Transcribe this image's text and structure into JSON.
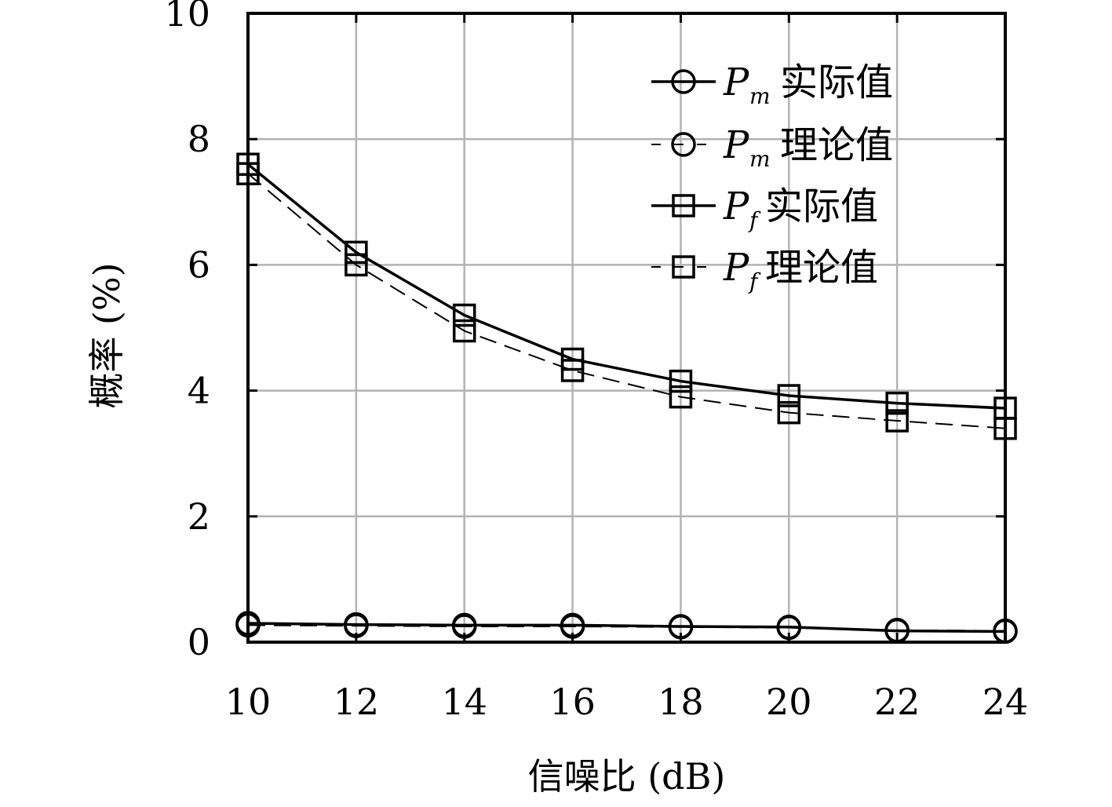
{
  "chart_data": {
    "type": "line",
    "xlabel": "信噪比 (dB)",
    "ylabel": "概率 (%)",
    "xlim": [
      10,
      24
    ],
    "ylim": [
      0,
      10
    ],
    "xticks": [
      "10",
      "12",
      "14",
      "16",
      "18",
      "20",
      "22",
      "24"
    ],
    "yticks": [
      "0",
      "2",
      "4",
      "6",
      "8",
      "10"
    ],
    "grid": true,
    "legend_position": "top-right",
    "x": [
      10,
      12,
      14,
      16,
      18,
      20,
      22,
      24
    ],
    "series": [
      {
        "name": "实际值",
        "symbol": "P",
        "subscript": "m",
        "marker": "circle",
        "dash": "solid",
        "values": [
          0.3,
          0.28,
          0.27,
          0.27,
          0.25,
          0.24,
          0.18,
          0.17
        ]
      },
      {
        "name": "理论值",
        "symbol": "P",
        "subscript": "m",
        "marker": "circle",
        "dash": "dashed",
        "values": [
          0.27,
          0.26,
          0.25,
          0.25,
          0.24,
          0.23,
          0.19,
          0.18
        ]
      },
      {
        "name": "实际值",
        "symbol": "P",
        "subscript": "f",
        "marker": "square",
        "dash": "solid",
        "values": [
          7.6,
          6.2,
          5.2,
          4.5,
          4.15,
          3.92,
          3.8,
          3.72
        ]
      },
      {
        "name": "理论值",
        "symbol": "P",
        "subscript": "f",
        "marker": "square",
        "dash": "dashed",
        "values": [
          7.45,
          6.0,
          4.95,
          4.32,
          3.9,
          3.65,
          3.52,
          3.4
        ]
      }
    ]
  }
}
